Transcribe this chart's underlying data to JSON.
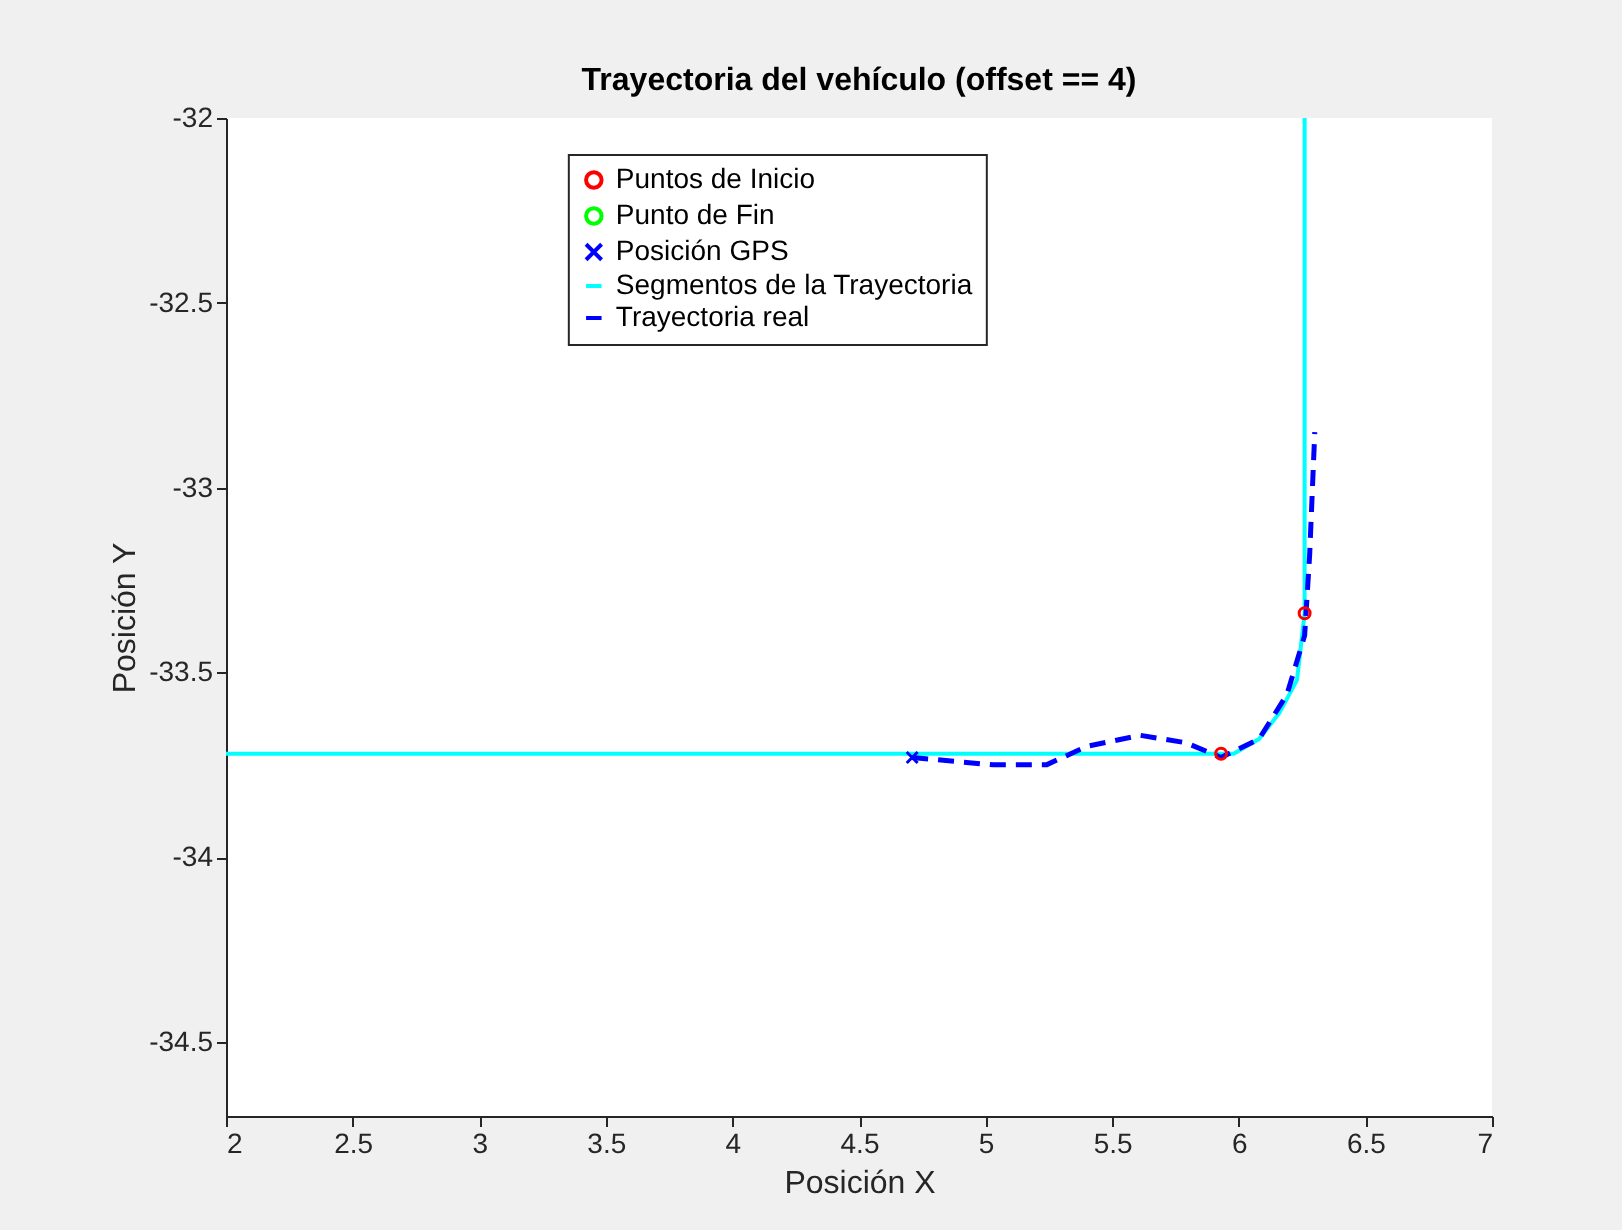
{
  "chart_data": {
    "type": "line",
    "title": "Trayectoria del vehículo (offset == 4)",
    "xlabel": "Posición X",
    "ylabel": "Posición Y",
    "xlim": [
      2,
      7
    ],
    "xticks": [
      2,
      2.5,
      3,
      3.5,
      4,
      4.5,
      5,
      5.5,
      6,
      6.5,
      7
    ],
    "ylim": [
      -34.7,
      -32
    ],
    "yticks": [
      -34.5,
      -34,
      -33.5,
      -33,
      -32.5,
      -32
    ],
    "grid": false,
    "legend": "top",
    "series": [
      {
        "name": "Puntos de Inicio",
        "type": "scatter",
        "marker": "circle",
        "color": "#ff0000",
        "x": [
          5.93,
          6.26
        ],
        "values": [
          -33.72,
          -33.34
        ]
      },
      {
        "name": "Punto de Fin",
        "type": "scatter",
        "marker": "circle",
        "color": "#00ff00"
      },
      {
        "name": "Posición GPS",
        "type": "scatter",
        "marker": "cross",
        "color": "#0000ff",
        "x": [
          4.71
        ],
        "values": [
          -33.73
        ]
      },
      {
        "name": "Segmentos de la Trayectoria",
        "line_style": "solid",
        "color": "#00ffff",
        "x": [
          2,
          5.98,
          6.08,
          6.16,
          6.23,
          6.26,
          6.26
        ],
        "values": [
          -33.72,
          -33.72,
          -33.68,
          -33.61,
          -33.52,
          -33.34,
          -32
        ]
      },
      {
        "name": "Trayectoria real",
        "line_style": "dashed",
        "color": "#0000ff",
        "x": [
          4.71,
          5.03,
          5.24,
          5.4,
          5.61,
          5.79,
          5.93,
          6.08,
          6.19,
          6.26,
          6.28,
          6.3
        ],
        "values": [
          -33.73,
          -33.75,
          -33.75,
          -33.7,
          -33.67,
          -33.69,
          -33.73,
          -33.68,
          -33.56,
          -33.4,
          -33.18,
          -32.85
        ]
      }
    ]
  }
}
